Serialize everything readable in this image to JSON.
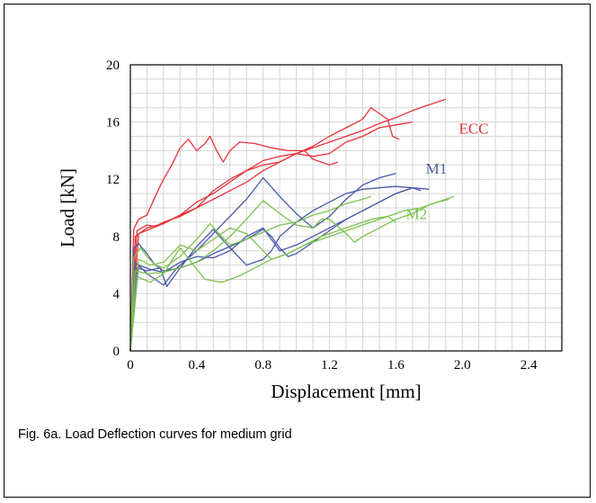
{
  "caption": "Fig. 6a.  Load Deflection curves for medium grid",
  "chart_data": {
    "type": "line",
    "title": "",
    "xlabel": "Displacement [mm]",
    "ylabel": "Load [kN]",
    "xlim": [
      0,
      2.6
    ],
    "ylim": [
      0,
      20
    ],
    "xticks": [
      0,
      0.4,
      0.8,
      1.2,
      1.6,
      2.0,
      2.4
    ],
    "xtick_labels": [
      "0",
      "0.4",
      "0.8",
      "1.2",
      "1.6",
      "2.0",
      "2.4"
    ],
    "yticks": [
      0,
      4,
      8,
      12,
      16,
      20
    ],
    "ytick_labels": [
      "0",
      "4",
      "8",
      "12",
      "16",
      "20"
    ],
    "grid": true,
    "series": [
      {
        "name": "ECC",
        "color": "#e8333b",
        "label_at": [
          1.98,
          15.2
        ],
        "lines": [
          [
            [
              0.0,
              0
            ],
            [
              0.02,
              8.5
            ],
            [
              0.05,
              9.2
            ],
            [
              0.1,
              9.5
            ],
            [
              0.15,
              10.8
            ],
            [
              0.2,
              12.0
            ],
            [
              0.25,
              13.0
            ],
            [
              0.3,
              14.2
            ],
            [
              0.35,
              14.8
            ],
            [
              0.4,
              14.0
            ],
            [
              0.45,
              14.5
            ],
            [
              0.48,
              15.0
            ],
            [
              0.52,
              14.0
            ],
            [
              0.56,
              13.2
            ],
            [
              0.6,
              14.0
            ],
            [
              0.66,
              14.6
            ],
            [
              0.75,
              14.5
            ],
            [
              0.85,
              14.2
            ],
            [
              0.95,
              14.0
            ],
            [
              1.05,
              14.0
            ],
            [
              1.1,
              13.4
            ],
            [
              1.15,
              13.2
            ],
            [
              1.2,
              13.0
            ],
            [
              1.25,
              13.2
            ]
          ],
          [
            [
              0.0,
              0
            ],
            [
              0.03,
              8.0
            ],
            [
              0.1,
              8.6
            ],
            [
              0.2,
              8.9
            ],
            [
              0.3,
              9.5
            ],
            [
              0.4,
              10.0
            ],
            [
              0.5,
              11.2
            ],
            [
              0.6,
              12.0
            ],
            [
              0.7,
              12.6
            ],
            [
              0.8,
              13.0
            ],
            [
              0.9,
              13.2
            ],
            [
              1.0,
              13.8
            ],
            [
              1.1,
              14.3
            ],
            [
              1.2,
              15.0
            ],
            [
              1.3,
              15.6
            ],
            [
              1.4,
              16.2
            ],
            [
              1.45,
              17.0
            ],
            [
              1.5,
              16.6
            ],
            [
              1.55,
              16.2
            ],
            [
              1.58,
              15.0
            ],
            [
              1.62,
              14.8
            ]
          ],
          [
            [
              0.0,
              0
            ],
            [
              0.04,
              8.4
            ],
            [
              0.1,
              8.8
            ],
            [
              0.15,
              8.7
            ],
            [
              0.2,
              9.0
            ],
            [
              0.3,
              9.4
            ],
            [
              0.4,
              10.0
            ],
            [
              0.5,
              10.6
            ],
            [
              0.6,
              11.2
            ],
            [
              0.7,
              11.8
            ],
            [
              0.8,
              12.6
            ],
            [
              0.9,
              13.2
            ],
            [
              1.0,
              13.8
            ],
            [
              1.1,
              14.2
            ],
            [
              1.2,
              14.6
            ],
            [
              1.3,
              15.0
            ],
            [
              1.4,
              15.4
            ],
            [
              1.5,
              15.9
            ],
            [
              1.6,
              16.3
            ],
            [
              1.7,
              16.8
            ],
            [
              1.8,
              17.2
            ],
            [
              1.9,
              17.6
            ]
          ],
          [
            [
              0.0,
              0
            ],
            [
              0.05,
              8.2
            ],
            [
              0.2,
              8.9
            ],
            [
              0.3,
              9.5
            ],
            [
              0.4,
              10.4
            ],
            [
              0.5,
              11.0
            ],
            [
              0.6,
              11.8
            ],
            [
              0.7,
              12.6
            ],
            [
              0.8,
              13.3
            ],
            [
              0.9,
              13.6
            ],
            [
              1.0,
              13.8
            ],
            [
              1.1,
              13.6
            ],
            [
              1.2,
              13.8
            ],
            [
              1.3,
              14.6
            ],
            [
              1.4,
              15.0
            ],
            [
              1.5,
              15.6
            ],
            [
              1.6,
              15.8
            ],
            [
              1.7,
              16.0
            ]
          ]
        ]
      },
      {
        "name": "M1",
        "color": "#4a5aa8",
        "label_at": [
          1.78,
          12.4
        ],
        "lines": [
          [
            [
              0.0,
              0
            ],
            [
              0.02,
              7.2
            ],
            [
              0.05,
              7.5
            ],
            [
              0.1,
              6.8
            ],
            [
              0.15,
              6.0
            ],
            [
              0.2,
              5.6
            ],
            [
              0.3,
              5.8
            ],
            [
              0.4,
              6.2
            ],
            [
              0.5,
              6.8
            ],
            [
              0.6,
              7.3
            ],
            [
              0.7,
              7.8
            ],
            [
              0.8,
              8.5
            ],
            [
              0.85,
              8.0
            ],
            [
              0.9,
              7.2
            ],
            [
              0.95,
              6.6
            ],
            [
              1.0,
              6.8
            ],
            [
              1.1,
              7.6
            ],
            [
              1.2,
              8.4
            ],
            [
              1.3,
              9.2
            ],
            [
              1.4,
              9.8
            ],
            [
              1.5,
              10.4
            ],
            [
              1.6,
              11.0
            ],
            [
              1.7,
              11.4
            ],
            [
              1.75,
              11.2
            ]
          ],
          [
            [
              0.0,
              0
            ],
            [
              0.03,
              6.2
            ],
            [
              0.1,
              5.4
            ],
            [
              0.2,
              4.6
            ],
            [
              0.28,
              5.8
            ],
            [
              0.32,
              6.2
            ],
            [
              0.4,
              7.0
            ],
            [
              0.5,
              8.2
            ],
            [
              0.6,
              9.4
            ],
            [
              0.7,
              10.6
            ],
            [
              0.8,
              12.1
            ],
            [
              0.9,
              10.8
            ],
            [
              1.0,
              9.6
            ],
            [
              1.1,
              8.6
            ],
            [
              1.2,
              9.4
            ],
            [
              1.3,
              10.6
            ],
            [
              1.4,
              11.6
            ],
            [
              1.5,
              12.1
            ],
            [
              1.6,
              12.4
            ]
          ],
          [
            [
              0.0,
              0
            ],
            [
              0.04,
              5.8
            ],
            [
              0.1,
              5.6
            ],
            [
              0.18,
              5.8
            ],
            [
              0.22,
              4.5
            ],
            [
              0.3,
              5.8
            ],
            [
              0.4,
              7.3
            ],
            [
              0.5,
              8.5
            ],
            [
              0.6,
              7.2
            ],
            [
              0.7,
              6.0
            ],
            [
              0.8,
              6.4
            ],
            [
              0.85,
              7.0
            ],
            [
              0.9,
              8.0
            ],
            [
              1.0,
              9.0
            ],
            [
              1.1,
              9.8
            ],
            [
              1.2,
              10.4
            ],
            [
              1.3,
              11.0
            ],
            [
              1.4,
              11.3
            ],
            [
              1.5,
              11.4
            ],
            [
              1.6,
              11.5
            ],
            [
              1.7,
              11.4
            ],
            [
              1.8,
              11.3
            ]
          ],
          [
            [
              0.0,
              0
            ],
            [
              0.05,
              6.0
            ],
            [
              0.12,
              5.7
            ],
            [
              0.2,
              5.5
            ],
            [
              0.3,
              6.2
            ],
            [
              0.4,
              6.6
            ],
            [
              0.5,
              6.5
            ],
            [
              0.6,
              7.0
            ],
            [
              0.7,
              8.0
            ],
            [
              0.8,
              8.6
            ],
            [
              0.85,
              7.8
            ],
            [
              0.9,
              7.0
            ],
            [
              1.0,
              7.4
            ],
            [
              1.1,
              8.0
            ],
            [
              1.2,
              8.6
            ],
            [
              1.3,
              9.2
            ],
            [
              1.4,
              9.8
            ],
            [
              1.5,
              10.4
            ],
            [
              1.6,
              11.0
            ],
            [
              1.7,
              11.4
            ]
          ]
        ]
      },
      {
        "name": "M2",
        "color": "#7cc14f",
        "label_at": [
          1.66,
          9.2
        ],
        "lines": [
          [
            [
              0.0,
              0
            ],
            [
              0.02,
              6.5
            ],
            [
              0.06,
              7.2
            ],
            [
              0.1,
              6.6
            ],
            [
              0.15,
              6.0
            ],
            [
              0.2,
              5.8
            ],
            [
              0.3,
              6.6
            ],
            [
              0.4,
              7.8
            ],
            [
              0.48,
              8.9
            ],
            [
              0.55,
              8.0
            ],
            [
              0.6,
              7.4
            ],
            [
              0.7,
              7.8
            ],
            [
              0.8,
              8.3
            ],
            [
              0.9,
              8.8
            ],
            [
              1.0,
              9.0
            ],
            [
              1.1,
              9.5
            ],
            [
              1.2,
              9.8
            ],
            [
              1.3,
              10.3
            ],
            [
              1.4,
              10.6
            ],
            [
              1.45,
              10.8
            ]
          ],
          [
            [
              0.0,
              0
            ],
            [
              0.03,
              5.6
            ],
            [
              0.1,
              5.4
            ],
            [
              0.2,
              5.5
            ],
            [
              0.3,
              5.8
            ],
            [
              0.4,
              6.2
            ],
            [
              0.5,
              7.0
            ],
            [
              0.6,
              8.0
            ],
            [
              0.7,
              9.2
            ],
            [
              0.8,
              10.5
            ],
            [
              0.9,
              9.6
            ],
            [
              1.0,
              8.8
            ],
            [
              1.1,
              8.6
            ],
            [
              1.15,
              9.2
            ],
            [
              1.2,
              9.2
            ],
            [
              1.3,
              8.2
            ],
            [
              1.35,
              7.6
            ],
            [
              1.4,
              8.0
            ],
            [
              1.5,
              8.6
            ],
            [
              1.6,
              9.2
            ],
            [
              1.7,
              9.6
            ],
            [
              1.8,
              10.2
            ],
            [
              1.9,
              10.6
            ],
            [
              1.95,
              10.8
            ]
          ],
          [
            [
              0.0,
              0
            ],
            [
              0.04,
              5.2
            ],
            [
              0.12,
              4.8
            ],
            [
              0.2,
              5.4
            ],
            [
              0.3,
              7.2
            ],
            [
              0.38,
              6.0
            ],
            [
              0.45,
              5.0
            ],
            [
              0.55,
              4.8
            ],
            [
              0.65,
              5.2
            ],
            [
              0.75,
              5.8
            ],
            [
              0.85,
              6.4
            ],
            [
              0.95,
              6.8
            ],
            [
              1.05,
              7.4
            ],
            [
              1.15,
              7.8
            ],
            [
              1.25,
              8.2
            ],
            [
              1.35,
              8.6
            ],
            [
              1.45,
              9.0
            ],
            [
              1.55,
              9.4
            ],
            [
              1.65,
              9.8
            ],
            [
              1.75,
              10.0
            ],
            [
              1.85,
              10.4
            ],
            [
              1.92,
              10.6
            ]
          ],
          [
            [
              0.0,
              0
            ],
            [
              0.05,
              6.4
            ],
            [
              0.12,
              6.0
            ],
            [
              0.2,
              6.2
            ],
            [
              0.3,
              7.4
            ],
            [
              0.4,
              7.0
            ],
            [
              0.5,
              7.8
            ],
            [
              0.6,
              8.6
            ],
            [
              0.7,
              8.2
            ],
            [
              0.8,
              7.0
            ],
            [
              0.85,
              6.4
            ],
            [
              0.95,
              6.8
            ],
            [
              1.05,
              7.4
            ],
            [
              1.15,
              8.0
            ],
            [
              1.25,
              8.4
            ],
            [
              1.35,
              8.8
            ],
            [
              1.45,
              9.2
            ],
            [
              1.55,
              9.4
            ],
            [
              1.6,
              9.0
            ]
          ]
        ]
      }
    ]
  }
}
